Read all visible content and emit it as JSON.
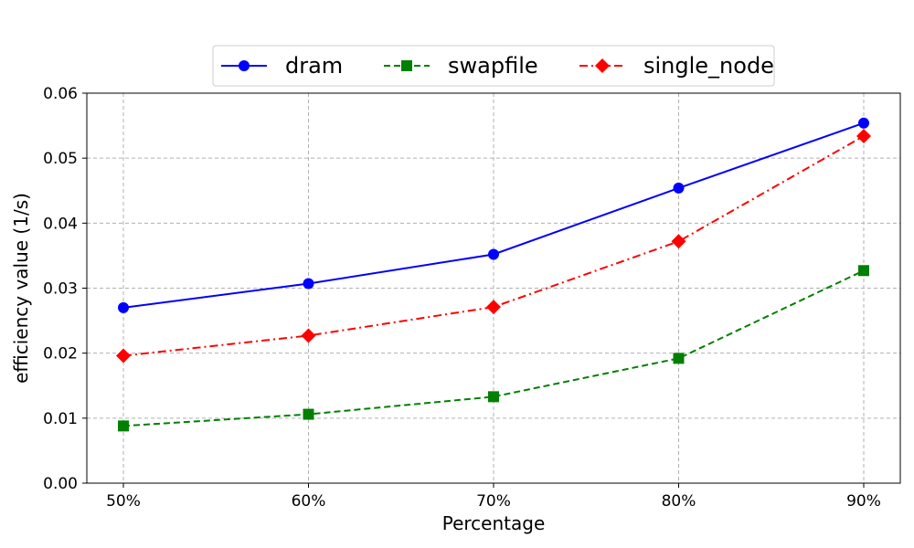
{
  "chart_data": {
    "type": "line",
    "title": "",
    "xlabel": "Percentage",
    "ylabel": "efficiency value (1/s)",
    "categories": [
      "50%",
      "60%",
      "70%",
      "80%",
      "90%"
    ],
    "ylim": [
      0,
      0.06
    ],
    "yticks": [
      "0.00",
      "0.01",
      "0.02",
      "0.03",
      "0.04",
      "0.05",
      "0.06"
    ],
    "grid": true,
    "legend_position": "top-center",
    "series": [
      {
        "name": "dram",
        "values": [
          0.027,
          0.0307,
          0.0352,
          0.0454,
          0.0554
        ],
        "color": "#0000ff",
        "marker": "circle",
        "line_style": "solid"
      },
      {
        "name": "swapfile",
        "values": [
          0.0088,
          0.0106,
          0.0133,
          0.0192,
          0.0327
        ],
        "color": "#008000",
        "marker": "square",
        "line_style": "dashed"
      },
      {
        "name": "single_node",
        "values": [
          0.0196,
          0.0227,
          0.0271,
          0.0372,
          0.0534
        ],
        "color": "#ff0000",
        "marker": "diamond",
        "line_style": "dash-dot"
      }
    ]
  }
}
